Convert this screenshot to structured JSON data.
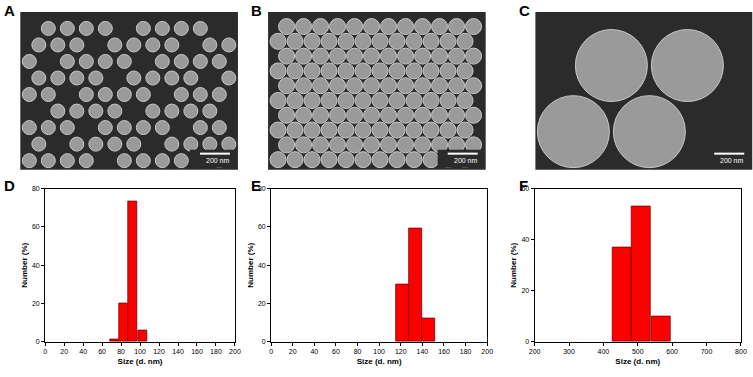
{
  "images": [
    {
      "label": "A",
      "scale_bar": "200 nm"
    },
    {
      "label": "B",
      "scale_bar": "200 nm"
    },
    {
      "label": "C",
      "scale_bar": "200 nm"
    }
  ],
  "chart_data": [
    {
      "type": "bar",
      "label": "D",
      "x_label": "Size (d. nm)",
      "y_label": "Number (%)",
      "x": [
        73,
        83,
        92,
        103
      ],
      "values": [
        1.5,
        20,
        73,
        6
      ],
      "color": "#ff0000",
      "xlim": [
        0,
        200
      ],
      "xticks": [
        0,
        20,
        40,
        60,
        80,
        100,
        120,
        140,
        160,
        180,
        200
      ],
      "ylim": [
        0,
        80
      ],
      "yticks": [
        0,
        20,
        40,
        60,
        80
      ]
    },
    {
      "type": "bar",
      "label": "E",
      "x_label": "Size (d. nm)",
      "y_label": "Number (%)",
      "x": [
        122,
        134,
        146
      ],
      "values": [
        30,
        59,
        12
      ],
      "color": "#ff0000",
      "xlim": [
        0,
        200
      ],
      "xticks": [
        0,
        20,
        40,
        60,
        80,
        100,
        120,
        140,
        160,
        180,
        200
      ],
      "ylim": [
        0,
        80
      ],
      "yticks": [
        0,
        20,
        40,
        60,
        80
      ]
    },
    {
      "type": "bar",
      "label": "F",
      "x_label": "Size (d. nm)",
      "y_label": "Number (%)",
      "x": [
        455,
        510,
        568
      ],
      "values": [
        37,
        53,
        10
      ],
      "color": "#ff0000",
      "xlim": [
        200,
        800
      ],
      "xticks": [
        200,
        300,
        400,
        500,
        600,
        700,
        800
      ],
      "ylim": [
        0,
        60
      ],
      "yticks": [
        0,
        20,
        40,
        60
      ]
    }
  ]
}
